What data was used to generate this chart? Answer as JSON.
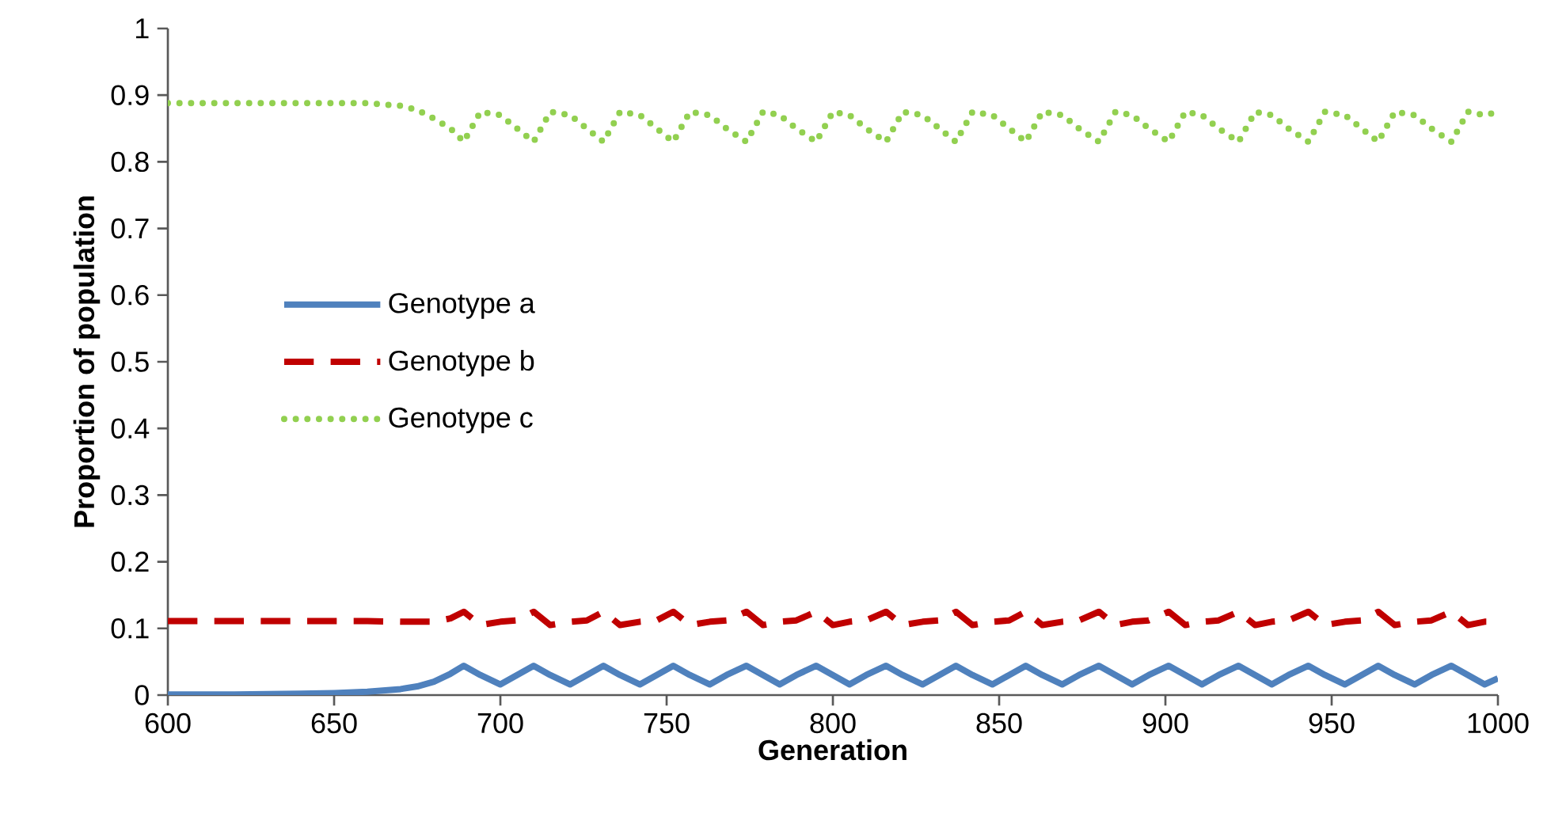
{
  "chart_data": {
    "type": "line",
    "xlabel": "Generation",
    "ylabel": "Proportion of population",
    "x": [
      600,
      620,
      640,
      650,
      660,
      670,
      675,
      680,
      685,
      689,
      694,
      700,
      705,
      710,
      715,
      721,
      726,
      731,
      736,
      742,
      747,
      752,
      757,
      763,
      768,
      774,
      779,
      784,
      789,
      795,
      800,
      805,
      810,
      816,
      821,
      827,
      832,
      837,
      842,
      848,
      853,
      858,
      863,
      869,
      874,
      880,
      885,
      890,
      895,
      901,
      906,
      911,
      916,
      922,
      927,
      932,
      937,
      943,
      948,
      954,
      959,
      964,
      969,
      975,
      980,
      986,
      991,
      996,
      1000
    ],
    "series": [
      {
        "name": "Genotype a",
        "color": "#4f81bd",
        "line_style": "solid",
        "values": [
          0.001,
          0.001,
          0.002,
          0.003,
          0.005,
          0.009,
          0.013,
          0.02,
          0.032,
          0.044,
          0.03,
          0.016,
          0.03,
          0.044,
          0.03,
          0.016,
          0.03,
          0.044,
          0.03,
          0.016,
          0.03,
          0.044,
          0.03,
          0.016,
          0.03,
          0.044,
          0.03,
          0.016,
          0.03,
          0.044,
          0.03,
          0.016,
          0.03,
          0.044,
          0.03,
          0.016,
          0.03,
          0.044,
          0.03,
          0.016,
          0.03,
          0.044,
          0.03,
          0.016,
          0.03,
          0.044,
          0.03,
          0.016,
          0.03,
          0.044,
          0.03,
          0.016,
          0.03,
          0.044,
          0.03,
          0.016,
          0.03,
          0.044,
          0.03,
          0.016,
          0.03,
          0.044,
          0.03,
          0.016,
          0.03,
          0.044,
          0.03,
          0.016,
          0.025
        ]
      },
      {
        "name": "Genotype b",
        "color": "#c00000",
        "line_style": "dashed",
        "values": [
          0.111,
          0.111,
          0.111,
          0.111,
          0.111,
          0.11,
          0.11,
          0.11,
          0.115,
          0.125,
          0.105,
          0.11,
          0.112,
          0.125,
          0.105,
          0.11,
          0.112,
          0.125,
          0.105,
          0.11,
          0.112,
          0.125,
          0.105,
          0.11,
          0.112,
          0.125,
          0.105,
          0.11,
          0.112,
          0.125,
          0.105,
          0.11,
          0.112,
          0.125,
          0.105,
          0.11,
          0.112,
          0.125,
          0.105,
          0.11,
          0.112,
          0.125,
          0.105,
          0.11,
          0.112,
          0.125,
          0.105,
          0.11,
          0.112,
          0.125,
          0.105,
          0.11,
          0.112,
          0.125,
          0.105,
          0.11,
          0.112,
          0.125,
          0.105,
          0.11,
          0.112,
          0.125,
          0.105,
          0.11,
          0.112,
          0.125,
          0.105,
          0.11,
          0.11
        ]
      },
      {
        "name": "Genotype c",
        "color": "#92d050",
        "line_style": "dotted",
        "values": [
          0.888,
          0.888,
          0.888,
          0.888,
          0.888,
          0.884,
          0.878,
          0.865,
          0.85,
          0.83,
          0.875,
          0.87,
          0.85,
          0.83,
          0.875,
          0.87,
          0.85,
          0.83,
          0.875,
          0.87,
          0.85,
          0.83,
          0.875,
          0.87,
          0.85,
          0.83,
          0.875,
          0.87,
          0.85,
          0.83,
          0.875,
          0.87,
          0.85,
          0.83,
          0.875,
          0.87,
          0.85,
          0.83,
          0.875,
          0.87,
          0.85,
          0.83,
          0.875,
          0.87,
          0.85,
          0.83,
          0.875,
          0.87,
          0.85,
          0.83,
          0.875,
          0.87,
          0.85,
          0.83,
          0.875,
          0.87,
          0.85,
          0.83,
          0.875,
          0.87,
          0.85,
          0.83,
          0.875,
          0.87,
          0.85,
          0.83,
          0.875,
          0.87,
          0.875
        ]
      }
    ],
    "xlim": [
      600,
      1000
    ],
    "ylim": [
      0,
      1
    ],
    "xticks": [
      600,
      650,
      700,
      750,
      800,
      850,
      900,
      950,
      1000
    ],
    "yticks": [
      0,
      {
        "value": 0.1,
        "label": "0.1"
      },
      {
        "value": 0.2,
        "label": "0.2"
      },
      {
        "value": 0.3,
        "label": "0.3"
      },
      {
        "value": 0.4,
        "label": "0.4"
      },
      {
        "value": 0.5,
        "label": "0.5"
      },
      {
        "value": 0.6,
        "label": "0.6"
      },
      {
        "value": 0.7,
        "label": "0.7"
      },
      {
        "value": 0.8,
        "label": "0.8"
      },
      {
        "value": 0.9,
        "label": "0.9"
      },
      1
    ],
    "grid": false,
    "legend": "left"
  }
}
